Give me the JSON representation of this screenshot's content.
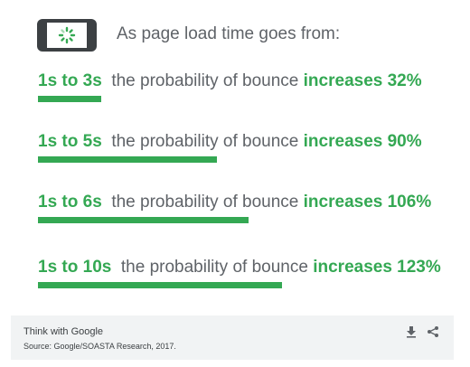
{
  "header": {
    "text": "As page load time goes from:",
    "icon": "phone-loading-icon"
  },
  "chart_data": {
    "type": "bar",
    "categories": [
      "1s to 3s",
      "1s to 5s",
      "1s to 6s",
      "1s to 10s"
    ],
    "values": [
      32,
      90,
      106,
      123
    ],
    "labels": [
      "the probability of bounce",
      "the probability of bounce",
      "the probability of bounce",
      "the probability of bounce"
    ],
    "results": [
      "increases 32%",
      "increases 90%",
      "increases 106%",
      "increases 123%"
    ],
    "unit": "%",
    "orientation": "horizontal",
    "xlim": [
      0,
      123
    ],
    "grid": false,
    "colors": {
      "accent": "#34a853",
      "text": "#5f6368"
    }
  },
  "footer": {
    "brand": "Think with Google",
    "source": "Source: Google/SOASTA Research, 2017.",
    "icons": [
      "download-icon",
      "share-icon"
    ]
  }
}
